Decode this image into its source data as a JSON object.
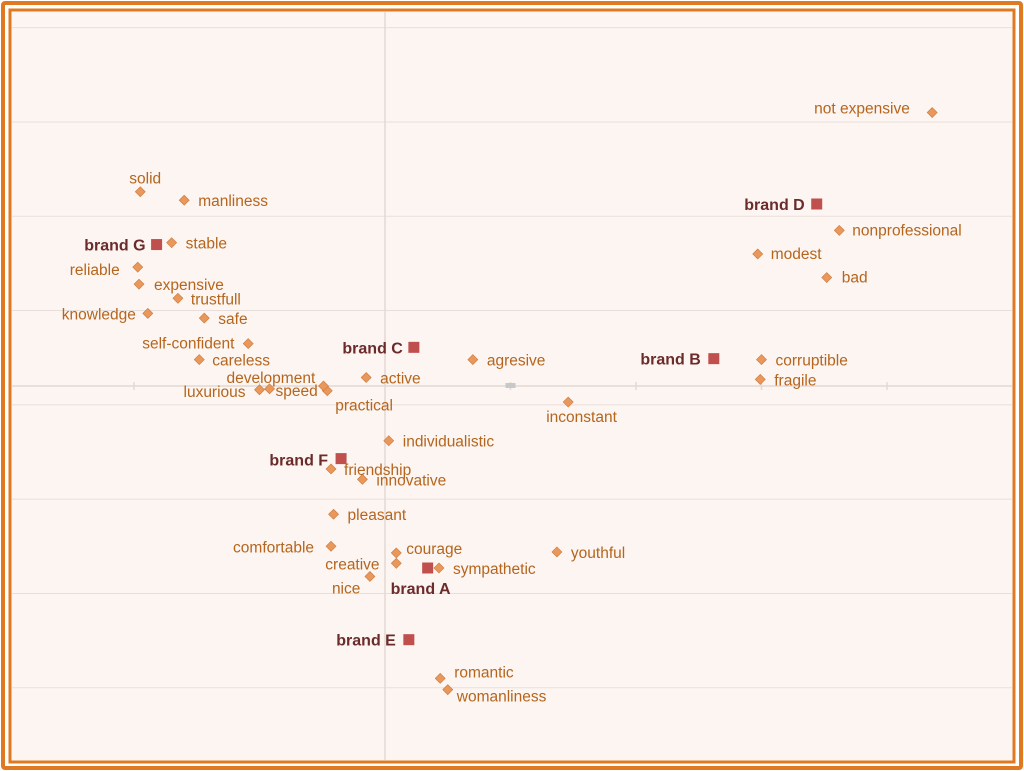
{
  "colors": {
    "frame": "#e07a22",
    "plot_bg": "#fdf5f1",
    "grid": "#e9dfda",
    "axis": "#e3d9d4",
    "attribute_marker": "#e9975a",
    "attribute_text": "#b5651d",
    "brand_marker": "#c0504d",
    "brand_text": "#6b2b2b",
    "origin_marker": "#c8c8c8"
  },
  "chart_data": {
    "type": "scatter",
    "title": "",
    "xlabel": "",
    "ylabel": "",
    "xlim": [
      -3,
      5
    ],
    "ylim": [
      -3.2,
      4
    ],
    "grid": true,
    "legend": "none",
    "origin_marker": [
      1,
      0
    ],
    "series": [
      {
        "name": "",
        "marker": "diamond",
        "points": [
          {
            "label": "not expensive",
            "x": 4.36,
            "y": 2.9
          },
          {
            "label": "nonprofessional",
            "x": 3.62,
            "y": 1.65
          },
          {
            "label": "modest",
            "x": 2.97,
            "y": 1.4
          },
          {
            "label": "bad",
            "x": 3.52,
            "y": 1.15
          },
          {
            "label": "corruptible",
            "x": 3.0,
            "y": 0.28
          },
          {
            "label": "fragile",
            "x": 2.99,
            "y": 0.07
          },
          {
            "label": "agresive",
            "x": 0.7,
            "y": 0.28
          },
          {
            "label": "inconstant",
            "x": 1.46,
            "y": -0.17
          },
          {
            "label": "active",
            "x": -0.15,
            "y": 0.09
          },
          {
            "label": "practical",
            "x": -0.46,
            "y": -0.05
          },
          {
            "label": "development",
            "x": -0.49,
            "y": 0.0
          },
          {
            "label": "speed",
            "x": -0.92,
            "y": -0.03
          },
          {
            "label": "luxurious",
            "x": -1.0,
            "y": -0.04
          },
          {
            "label": "careless",
            "x": -1.48,
            "y": 0.28
          },
          {
            "label": "self-confident",
            "x": -1.09,
            "y": 0.45
          },
          {
            "label": "safe",
            "x": -1.44,
            "y": 0.72
          },
          {
            "label": "knowledge",
            "x": -1.89,
            "y": 0.77
          },
          {
            "label": "trustfull",
            "x": -1.65,
            "y": 0.93
          },
          {
            "label": "expensive",
            "x": -1.96,
            "y": 1.08
          },
          {
            "label": "reliable",
            "x": -1.97,
            "y": 1.26
          },
          {
            "label": "stable",
            "x": -1.7,
            "y": 1.52
          },
          {
            "label": "manliness",
            "x": -1.6,
            "y": 1.97
          },
          {
            "label": "solid",
            "x": -1.95,
            "y": 2.06
          },
          {
            "label": "individualistic",
            "x": 0.03,
            "y": -0.58
          },
          {
            "label": "friendship",
            "x": -0.43,
            "y": -0.88
          },
          {
            "label": "innovative",
            "x": -0.18,
            "y": -0.99
          },
          {
            "label": "pleasant",
            "x": -0.41,
            "y": -1.36
          },
          {
            "label": "comfortable",
            "x": -0.43,
            "y": -1.7
          },
          {
            "label": "courage",
            "x": 0.09,
            "y": -1.77
          },
          {
            "label": "creative",
            "x": 0.09,
            "y": -1.88
          },
          {
            "label": "sympathetic",
            "x": 0.43,
            "y": -1.93
          },
          {
            "label": "nice",
            "x": -0.12,
            "y": -2.02
          },
          {
            "label": "youthful",
            "x": 1.37,
            "y": -1.76
          },
          {
            "label": "romantic",
            "x": 0.44,
            "y": -3.1
          },
          {
            "label": "womanliness",
            "x": 0.5,
            "y": -3.22
          }
        ]
      },
      {
        "name": "",
        "marker": "square",
        "points": [
          {
            "label": "brand D",
            "x": 3.44,
            "y": 1.93
          },
          {
            "label": "brand G",
            "x": -1.82,
            "y": 1.5
          },
          {
            "label": "brand C",
            "x": 0.23,
            "y": 0.41
          },
          {
            "label": "brand B",
            "x": 2.62,
            "y": 0.29
          },
          {
            "label": "brand F",
            "x": -0.35,
            "y": -0.77
          },
          {
            "label": "brand A",
            "x": 0.34,
            "y": -1.93
          },
          {
            "label": "brand E",
            "x": 0.19,
            "y": -2.69
          }
        ]
      }
    ]
  }
}
